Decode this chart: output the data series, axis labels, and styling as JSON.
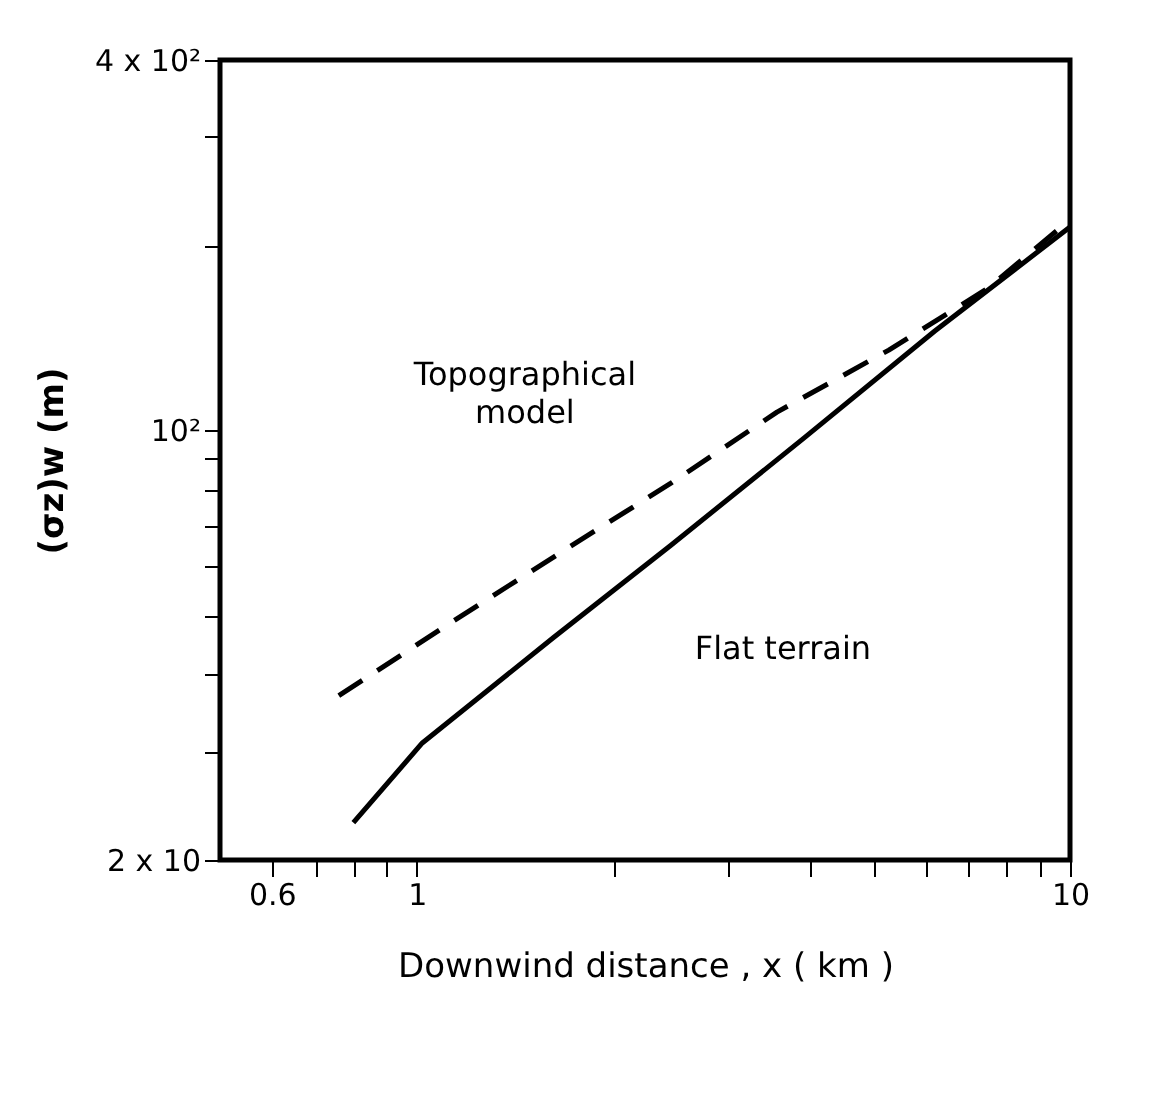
{
  "chart_data": {
    "type": "line",
    "xlabel": "Downwind  distance , x ( km )",
    "ylabel": "(σz)w  (m)",
    "log": "xy",
    "xlim": [
      0.5,
      10
    ],
    "ylim": [
      20,
      400
    ],
    "xticks": [
      {
        "value": 0.6,
        "label": "0.6"
      },
      {
        "value": 0.7,
        "label": null
      },
      {
        "value": 0.8,
        "label": null
      },
      {
        "value": 0.9,
        "label": null
      },
      1,
      {
        "value": 2,
        "label": null
      },
      {
        "value": 3,
        "label": null
      },
      {
        "value": 4,
        "label": null
      },
      {
        "value": 5,
        "label": null
      },
      {
        "value": 6,
        "label": null
      },
      {
        "value": 7,
        "label": null
      },
      {
        "value": 8,
        "label": null
      },
      {
        "value": 9,
        "label": null
      },
      10
    ],
    "yticks": [
      {
        "value": 20,
        "label": "2 x 10"
      },
      {
        "value": 30,
        "label": null
      },
      {
        "value": 40,
        "label": null
      },
      {
        "value": 50,
        "label": null
      },
      {
        "value": 60,
        "label": null
      },
      {
        "value": 70,
        "label": null
      },
      {
        "value": 80,
        "label": null
      },
      {
        "value": 90,
        "label": null
      },
      {
        "value": 100,
        "label": "10²"
      },
      {
        "value": 200,
        "label": null
      },
      {
        "value": 300,
        "label": null
      },
      {
        "value": 400,
        "label": "4 x 10²"
      }
    ],
    "grid": false,
    "series": [
      {
        "name": "Topographical\nmodel",
        "color": "#000000",
        "line_style": "dashed",
        "x": [
          0.76,
          1.14,
          1.69,
          2.45,
          3.56,
          5.28,
          7.48,
          10
        ],
        "values": [
          37,
          49,
          64,
          82,
          107,
          135,
          170,
          220
        ]
      },
      {
        "name": "Flat  terrain",
        "color": "#000000",
        "line_style": "solid",
        "x": [
          0.8,
          1.02,
          1.62,
          2.45,
          3.91,
          6.21,
          10
        ],
        "values": [
          23,
          31,
          46,
          65,
          97,
          145,
          214
        ]
      }
    ]
  }
}
